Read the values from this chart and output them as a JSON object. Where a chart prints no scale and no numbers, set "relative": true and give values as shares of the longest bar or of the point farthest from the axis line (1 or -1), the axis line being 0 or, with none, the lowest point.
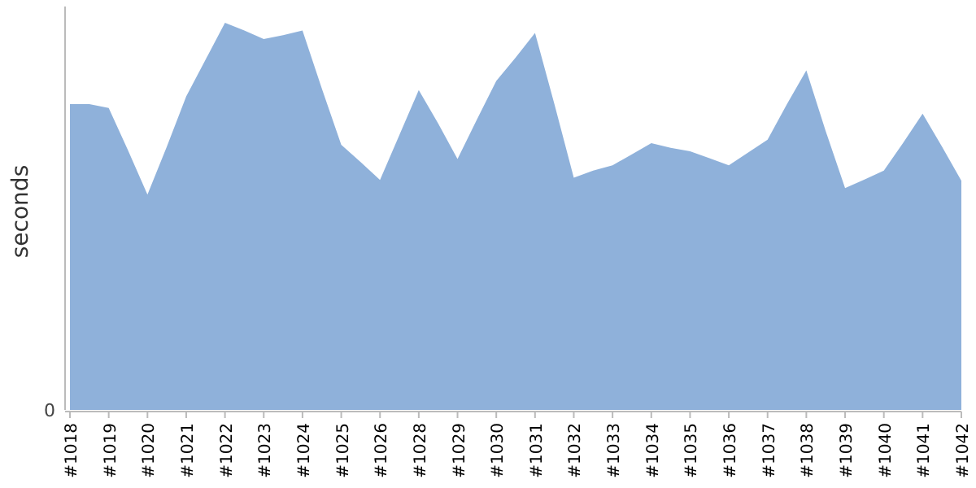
{
  "chart_data": {
    "type": "area",
    "ylabel": "seconds",
    "relative": true,
    "color": "#8fb1da",
    "annotations": [
      "0"
    ],
    "categories": [
      "#1018",
      null,
      "#1019",
      null,
      "#1020",
      null,
      "#1021",
      null,
      "#1022",
      null,
      "#1023",
      null,
      "#1024",
      null,
      "#1025",
      null,
      "#1026",
      null,
      "#1028",
      null,
      "#1029",
      null,
      "#1030",
      null,
      "#1031",
      null,
      "#1032",
      null,
      "#1033",
      null,
      "#1034",
      null,
      "#1035",
      null,
      "#1036",
      null,
      "#1037",
      null,
      "#1038",
      null,
      "#1039",
      null,
      "#1040",
      null,
      "#1041",
      null,
      "#1042"
    ],
    "values": [
      0.79,
      0.79,
      0.78,
      0.67,
      0.556,
      0.68,
      0.81,
      0.905,
      1,
      0.98,
      0.958,
      0.968,
      0.98,
      0.83,
      0.685,
      0.64,
      0.594,
      0.71,
      0.826,
      0.74,
      0.648,
      0.75,
      0.85,
      0.91,
      0.974,
      0.79,
      0.6,
      0.618,
      0.632,
      0.66,
      0.689,
      0.677,
      0.668,
      0.65,
      0.632,
      0.665,
      0.698,
      0.79,
      0.877,
      0.72,
      0.573,
      0.595,
      0.618,
      0.69,
      0.765,
      0.68,
      0.592
    ]
  }
}
